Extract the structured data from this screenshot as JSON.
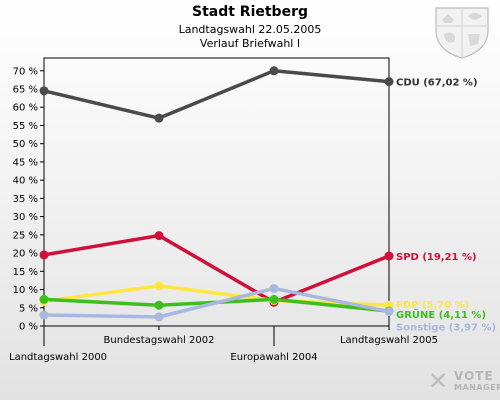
{
  "header": {
    "title": "Stadt Rietberg",
    "subtitle": "Landtagswahl 22.05.2005",
    "subsubtitle": "Verlauf Briefwahl I"
  },
  "branding": {
    "logo_line1": "VOTE",
    "logo_line2": "MANAGER",
    "logo_mark": "✕"
  },
  "chart_data": {
    "type": "line",
    "title": "Stadt Rietberg",
    "categories": [
      "Landtagswahl 2000",
      "Bundestagswahl 2002",
      "Europawahl 2004",
      "Landtagswahl 2005"
    ],
    "ylim": [
      0,
      70
    ],
    "yticks": [
      0,
      5,
      10,
      15,
      20,
      25,
      30,
      35,
      40,
      45,
      50,
      55,
      60,
      65,
      70
    ],
    "ytick_labels": [
      "0 %",
      "5 %",
      "10 %",
      "15 %",
      "20 %",
      "25 %",
      "30 %",
      "35 %",
      "40 %",
      "45 %",
      "50 %",
      "55 %",
      "60 %",
      "65 %",
      "70 %"
    ],
    "grid": false,
    "series": [
      {
        "name": "CDU",
        "label": "CDU (67,02 %)",
        "color": "#4a4a4a",
        "label_color": "#333333",
        "values": [
          64.5,
          57,
          70,
          67.02
        ]
      },
      {
        "name": "SPD",
        "label": "SPD (19,21 %)",
        "color": "#d0103a",
        "label_color": "#d0103a",
        "values": [
          19.5,
          24.8,
          6.5,
          19.21
        ]
      },
      {
        "name": "FDP",
        "label": "FDP (5,70 %)",
        "color": "#ffe640",
        "label_color": "#ffe640",
        "values": [
          6.8,
          11,
          7,
          5.7
        ]
      },
      {
        "name": "GRÜNE",
        "label": "GRÜNE (4,11 %)",
        "color": "#3cbf1e",
        "label_color": "#3cbf1e",
        "values": [
          7.3,
          5.7,
          7.3,
          4.11
        ]
      },
      {
        "name": "Sonstige",
        "label": "Sonstige (3,97 %)",
        "color": "#aab8e0",
        "label_color": "#aab8e0",
        "values": [
          3,
          2.5,
          10.3,
          3.97
        ]
      }
    ]
  }
}
